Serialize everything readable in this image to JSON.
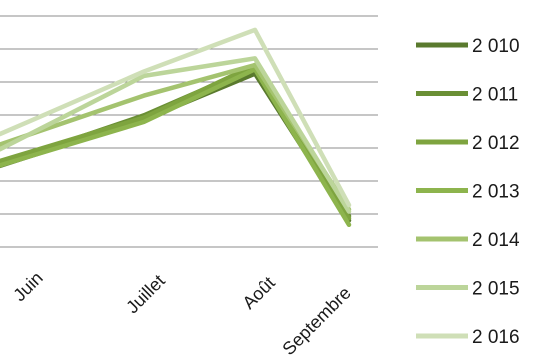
{
  "chart_data": {
    "type": "line",
    "categories": [
      "Juin",
      "Juillet",
      "Août",
      "Septembre"
    ],
    "ylim": [
      0,
      100
    ],
    "grid": true,
    "legend_position": "right",
    "series": [
      {
        "name": "2 010",
        "color": "#5a7a2e",
        "values": [
          48,
          65,
          86,
          19
        ]
      },
      {
        "name": "2 011",
        "color": "#6a8f35",
        "values": [
          49,
          67,
          89,
          21
        ]
      },
      {
        "name": "2 012",
        "color": "#7ea43f",
        "values": [
          50,
          66,
          90,
          20
        ]
      },
      {
        "name": "2 013",
        "color": "#8db44d",
        "values": [
          48,
          64,
          88,
          17
        ]
      },
      {
        "name": "2 014",
        "color": "#a4c36f",
        "values": [
          58,
          76,
          90,
          24
        ]
      },
      {
        "name": "2 015",
        "color": "#bcd59a",
        "values": [
          58,
          85,
          93,
          23
        ]
      },
      {
        "name": "2 016",
        "color": "#cfdfb7",
        "values": [
          64,
          87,
          106,
          26
        ]
      }
    ]
  }
}
